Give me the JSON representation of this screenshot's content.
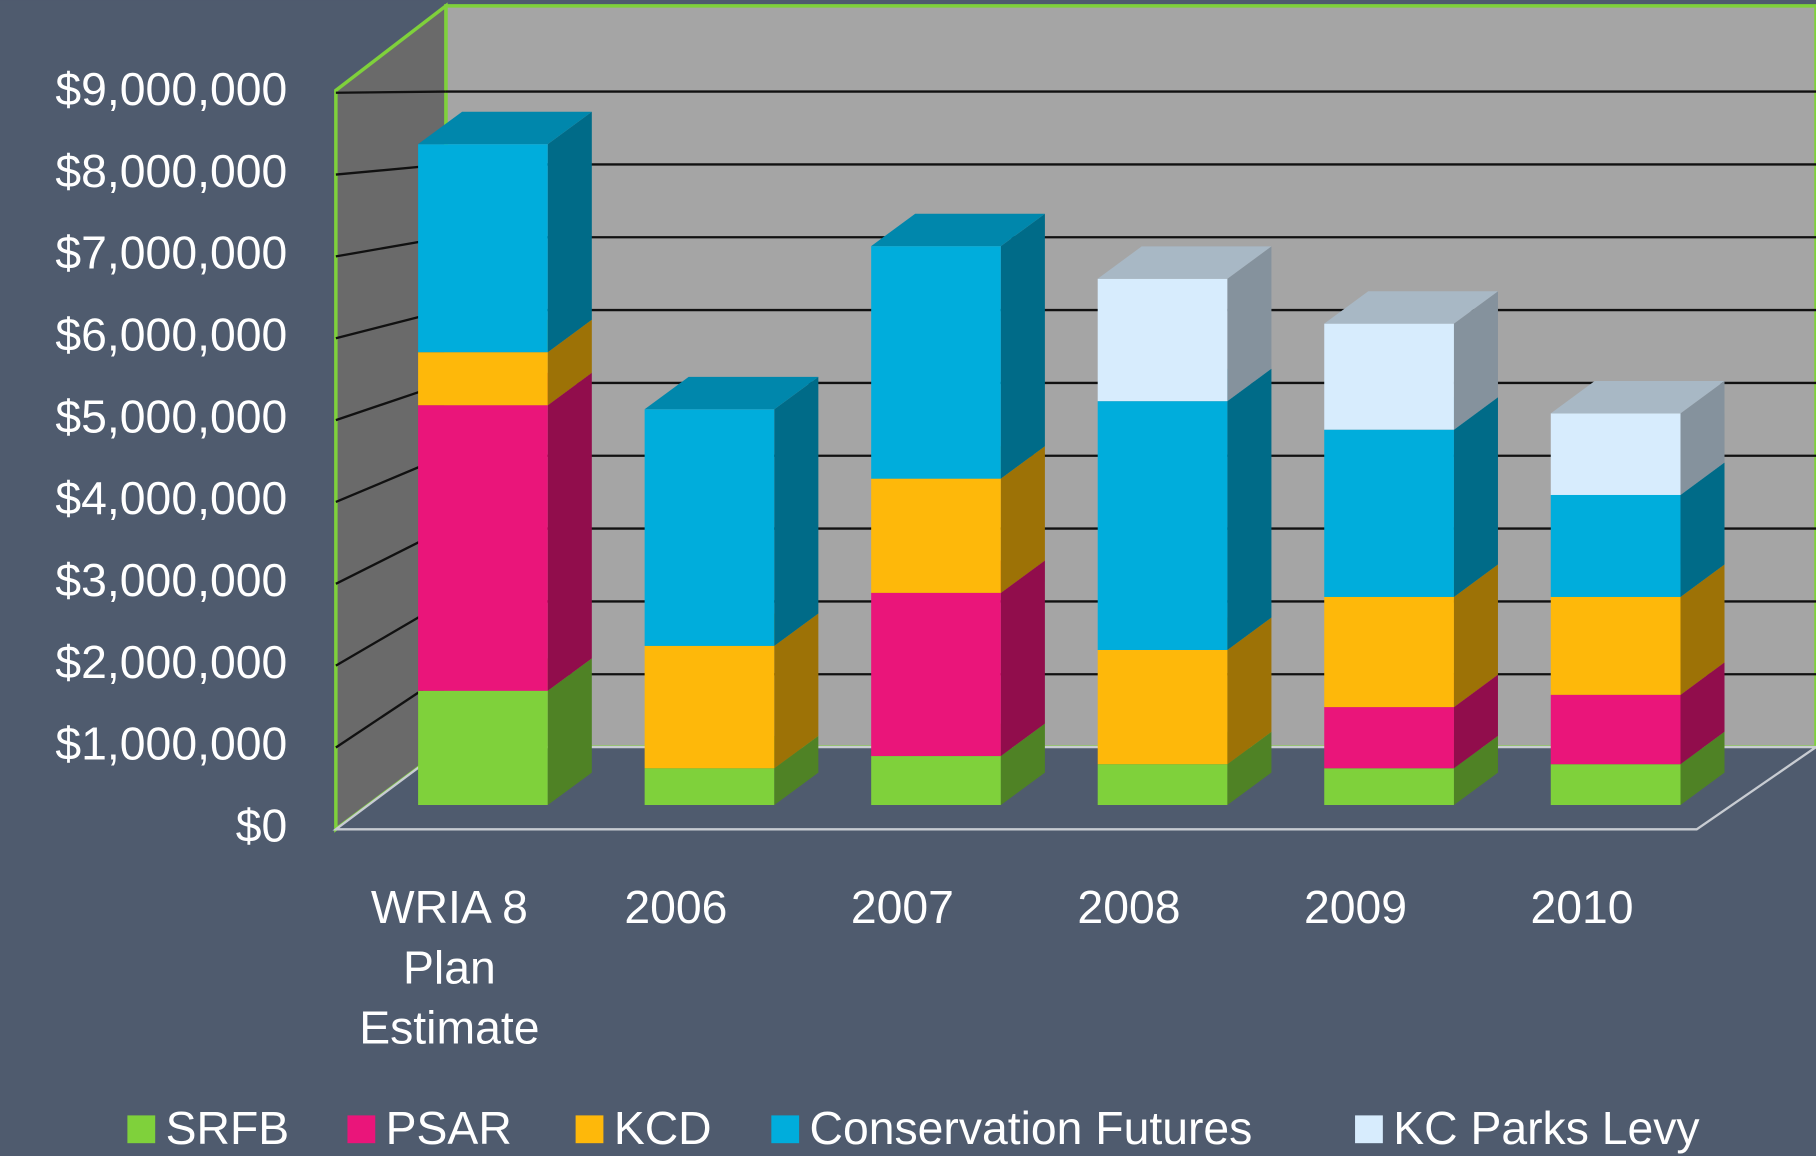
{
  "chart_data": {
    "type": "bar",
    "stacked": true,
    "categories": [
      "WRIA 8 Plan Estimate",
      "2006",
      "2007",
      "2008",
      "2009",
      "2010"
    ],
    "series": [
      {
        "name": "SRFB",
        "color": "#7fd13b",
        "values": [
          1400000,
          450000,
          600000,
          500000,
          450000,
          500000
        ]
      },
      {
        "name": "PSAR",
        "color": "#ea157a",
        "values": [
          3500000,
          0,
          2000000,
          0,
          750000,
          850000
        ]
      },
      {
        "name": "KCD",
        "color": "#feb80a",
        "values": [
          650000,
          1500000,
          1400000,
          1400000,
          1350000,
          1200000
        ]
      },
      {
        "name": "Conservation Futures",
        "color": "#00addc",
        "values": [
          2550000,
          2900000,
          2850000,
          3050000,
          2050000,
          1250000
        ]
      },
      {
        "name": "KC Parks Levy",
        "color": "#d7ecfd",
        "values": [
          0,
          0,
          0,
          1500000,
          1300000,
          1000000
        ]
      }
    ],
    "ylim": [
      0,
      9000000
    ],
    "yticks": [
      {
        "value": 0,
        "label": "$0"
      },
      {
        "value": 1000000,
        "label": "$1,000,000"
      },
      {
        "value": 2000000,
        "label": "$2,000,000"
      },
      {
        "value": 3000000,
        "label": "$3,000,000"
      },
      {
        "value": 4000000,
        "label": "$4,000,000"
      },
      {
        "value": 5000000,
        "label": "$5,000,000"
      },
      {
        "value": 6000000,
        "label": "$6,000,000"
      },
      {
        "value": 7000000,
        "label": "$7,000,000"
      },
      {
        "value": 8000000,
        "label": "$8,000,000"
      },
      {
        "value": 9000000,
        "label": "$9,000,000"
      }
    ],
    "grid": true,
    "legend": "bottom"
  }
}
